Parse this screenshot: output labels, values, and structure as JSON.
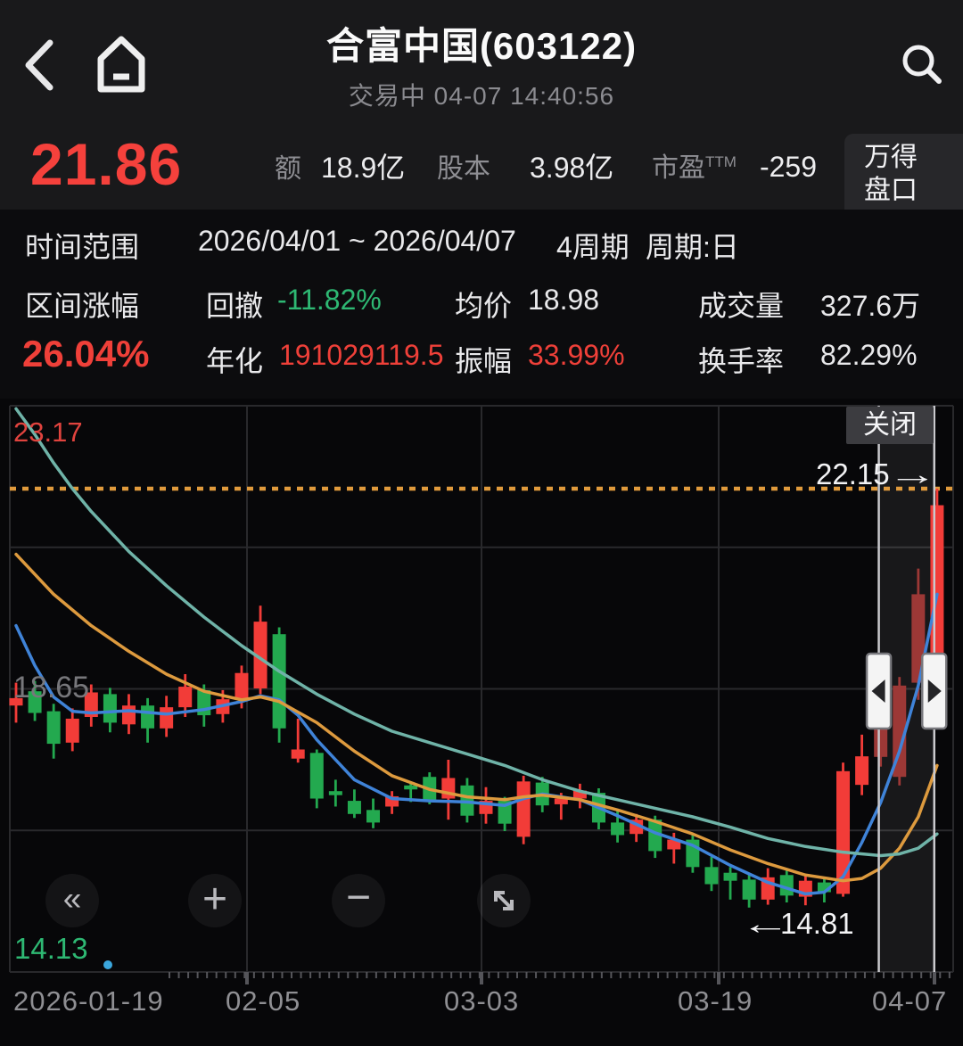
{
  "header": {
    "title": "合富中国(603122)",
    "status_datetime": "交易中  04-07 14:40:56"
  },
  "price_row": {
    "last_price": "21.86",
    "amount_label": "额",
    "amount_value": "18.9亿",
    "shares_label": "股本",
    "shares_value": "3.98亿",
    "pe_label": "市盈",
    "pe_sup": "TTM",
    "pe_value": "-259",
    "wind_line1": "万得",
    "wind_line2": "盘口"
  },
  "info_panel": {
    "range_label": "时间范围",
    "range_value": "2026/04/01 ~ 2026/04/07",
    "periods": "4周期",
    "cycle": "周期:日",
    "interval_label": "区间涨幅",
    "interval_value": "26.04%",
    "drawdown_label": "回撤",
    "drawdown_value": "-11.82%",
    "avg_label": "均价",
    "avg_value": "18.98",
    "volume_label": "成交量",
    "volume_value": "327.6万",
    "annualized_label": "年化",
    "annualized_value": "191029119.5",
    "amplitude_label": "振幅",
    "amplitude_value": "33.99%",
    "turnover_label": "换手率",
    "turnover_value": "82.29%"
  },
  "chart": {
    "close_button": "关闭",
    "y_max": "23.17",
    "y_mid": "18.65",
    "y_min": "14.13",
    "high_marker": "22.15",
    "high_arrow": "→",
    "low_marker": "14.81",
    "low_arrow": "←",
    "x_ticks": [
      "2026-01-19",
      "02-05",
      "03-03",
      "03-19",
      "04-07"
    ]
  },
  "toolbar": {
    "rewind": "«",
    "zoom_in": "+",
    "zoom_out": "−"
  },
  "chart_data": {
    "type": "candlestick",
    "title": "合富中国(603122) 日K线",
    "y_range": [
      14.13,
      23.17
    ],
    "x_tick_labels": [
      "2026-01-19",
      "02-05",
      "03-03",
      "03-19",
      "04-07"
    ],
    "dotted_line_price": 22.15,
    "low_marker": {
      "index": 39,
      "price": 14.81
    },
    "colors": {
      "up": "#f23c38",
      "down": "#23a94f",
      "dim": "#9c3836",
      "ma_short": "#3f83d8",
      "ma_mid": "#dd9a3e",
      "ma_long": "#6fb3a8",
      "grid": "#29292c",
      "dotted": "#e09a3c"
    },
    "selection": {
      "from_index": 45.9,
      "to_index": 48.85,
      "dim_indices": [
        46,
        47,
        48
      ],
      "label": "2026/04/01 ~ 2026/04/07"
    },
    "candles": [
      [
        18.35,
        18.75,
        18.05,
        18.48
      ],
      [
        18.6,
        18.78,
        18.08,
        18.22
      ],
      [
        18.25,
        18.38,
        17.42,
        17.68
      ],
      [
        17.7,
        18.3,
        17.55,
        18.12
      ],
      [
        18.15,
        18.72,
        17.98,
        18.58
      ],
      [
        18.55,
        18.66,
        17.88,
        18.05
      ],
      [
        18.02,
        18.55,
        17.85,
        18.35
      ],
      [
        18.35,
        18.48,
        17.7,
        17.95
      ],
      [
        17.95,
        18.52,
        17.8,
        18.32
      ],
      [
        18.32,
        18.9,
        18.15,
        18.68
      ],
      [
        18.62,
        18.72,
        17.98,
        18.18
      ],
      [
        18.2,
        18.62,
        18.05,
        18.46
      ],
      [
        18.45,
        19.05,
        18.3,
        18.92
      ],
      [
        18.65,
        20.1,
        18.55,
        19.82
      ],
      [
        19.6,
        19.72,
        17.7,
        17.95
      ],
      [
        17.42,
        18.12,
        17.35,
        17.58
      ],
      [
        17.52,
        17.58,
        16.55,
        16.72
      ],
      [
        16.85,
        17.05,
        16.58,
        16.78
      ],
      [
        16.68,
        16.88,
        16.38,
        16.45
      ],
      [
        16.52,
        16.72,
        16.2,
        16.3
      ],
      [
        16.58,
        16.85,
        16.45,
        16.76
      ],
      [
        16.95,
        17.02,
        16.66,
        16.88
      ],
      [
        17.1,
        17.18,
        16.62,
        16.7
      ],
      [
        16.72,
        17.4,
        16.35,
        17.08
      ],
      [
        16.95,
        17.08,
        16.3,
        16.42
      ],
      [
        16.45,
        16.92,
        16.28,
        16.68
      ],
      [
        16.68,
        16.75,
        16.15,
        16.28
      ],
      [
        16.05,
        17.12,
        15.92,
        17.02
      ],
      [
        17.0,
        17.1,
        16.48,
        16.6
      ],
      [
        16.62,
        16.82,
        16.35,
        16.72
      ],
      [
        16.72,
        16.98,
        16.55,
        16.86
      ],
      [
        16.82,
        16.9,
        16.18,
        16.3
      ],
      [
        16.3,
        16.52,
        15.95,
        16.08
      ],
      [
        16.1,
        16.45,
        15.96,
        16.35
      ],
      [
        16.35,
        16.42,
        15.68,
        15.8
      ],
      [
        15.83,
        16.12,
        15.58,
        16.0
      ],
      [
        16.0,
        16.1,
        15.42,
        15.52
      ],
      [
        15.52,
        15.7,
        15.1,
        15.22
      ],
      [
        15.42,
        15.52,
        14.95,
        15.28
      ],
      [
        15.3,
        15.38,
        14.81,
        14.95
      ],
      [
        14.95,
        15.5,
        14.86,
        15.34
      ],
      [
        15.38,
        15.46,
        14.9,
        15.02
      ],
      [
        15.0,
        15.36,
        14.85,
        15.28
      ],
      [
        15.25,
        15.32,
        14.9,
        15.08
      ],
      [
        15.05,
        17.35,
        15.0,
        17.2
      ],
      [
        16.96,
        17.84,
        16.78,
        17.46
      ],
      [
        17.45,
        18.12,
        17.28,
        17.95
      ],
      [
        17.1,
        18.85,
        16.95,
        18.7
      ],
      [
        18.75,
        20.75,
        18.45,
        20.3
      ],
      [
        19.26,
        22.15,
        19.05,
        21.86
      ]
    ],
    "ma_lines": [
      {
        "name": "ma-short",
        "color": "#3f83d8",
        "points": [
          [
            0,
            19.75
          ],
          [
            1,
            19.05
          ],
          [
            2,
            18.5
          ],
          [
            3,
            18.25
          ],
          [
            4,
            18.22
          ],
          [
            6,
            18.26
          ],
          [
            8,
            18.2
          ],
          [
            10,
            18.28
          ],
          [
            12,
            18.42
          ],
          [
            13,
            18.52
          ],
          [
            14,
            18.45
          ],
          [
            15,
            18.18
          ],
          [
            16,
            17.75
          ],
          [
            18,
            17.05
          ],
          [
            20,
            16.72
          ],
          [
            22,
            16.68
          ],
          [
            24,
            16.66
          ],
          [
            26,
            16.6
          ],
          [
            27,
            16.72
          ],
          [
            28,
            16.8
          ],
          [
            30,
            16.7
          ],
          [
            32,
            16.42
          ],
          [
            34,
            16.12
          ],
          [
            36,
            15.9
          ],
          [
            38,
            15.55
          ],
          [
            40,
            15.25
          ],
          [
            42,
            15.05
          ],
          [
            43,
            15.08
          ],
          [
            44,
            15.35
          ],
          [
            45,
            15.95
          ],
          [
            46,
            16.65
          ],
          [
            47,
            17.55
          ],
          [
            48,
            18.7
          ],
          [
            49,
            20.3
          ]
        ]
      },
      {
        "name": "ma-mid",
        "color": "#dd9a3e",
        "points": [
          [
            0,
            21.0
          ],
          [
            2,
            20.3
          ],
          [
            4,
            19.75
          ],
          [
            6,
            19.3
          ],
          [
            8,
            18.9
          ],
          [
            10,
            18.6
          ],
          [
            12,
            18.45
          ],
          [
            13,
            18.5
          ],
          [
            14,
            18.42
          ],
          [
            16,
            18.05
          ],
          [
            18,
            17.55
          ],
          [
            20,
            17.12
          ],
          [
            22,
            16.88
          ],
          [
            24,
            16.75
          ],
          [
            26,
            16.7
          ],
          [
            27,
            16.75
          ],
          [
            28,
            16.78
          ],
          [
            30,
            16.7
          ],
          [
            32,
            16.52
          ],
          [
            34,
            16.32
          ],
          [
            36,
            16.1
          ],
          [
            38,
            15.82
          ],
          [
            40,
            15.58
          ],
          [
            42,
            15.38
          ],
          [
            44,
            15.28
          ],
          [
            45,
            15.32
          ],
          [
            46,
            15.5
          ],
          [
            47,
            15.85
          ],
          [
            48,
            16.4
          ],
          [
            49,
            17.3
          ]
        ]
      },
      {
        "name": "ma-long",
        "color": "#6fb3a8",
        "points": [
          [
            0,
            23.55
          ],
          [
            1,
            23.1
          ],
          [
            2,
            22.6
          ],
          [
            3,
            22.15
          ],
          [
            4,
            21.75
          ],
          [
            5,
            21.4
          ],
          [
            6,
            21.05
          ],
          [
            8,
            20.45
          ],
          [
            10,
            19.9
          ],
          [
            12,
            19.4
          ],
          [
            14,
            18.95
          ],
          [
            16,
            18.55
          ],
          [
            18,
            18.2
          ],
          [
            20,
            17.9
          ],
          [
            22,
            17.7
          ],
          [
            24,
            17.5
          ],
          [
            26,
            17.3
          ],
          [
            28,
            17.05
          ],
          [
            30,
            16.85
          ],
          [
            32,
            16.7
          ],
          [
            34,
            16.55
          ],
          [
            36,
            16.4
          ],
          [
            38,
            16.22
          ],
          [
            40,
            16.02
          ],
          [
            42,
            15.88
          ],
          [
            44,
            15.78
          ],
          [
            46,
            15.72
          ],
          [
            47,
            15.75
          ],
          [
            48,
            15.85
          ],
          [
            49,
            16.1
          ]
        ]
      }
    ]
  }
}
